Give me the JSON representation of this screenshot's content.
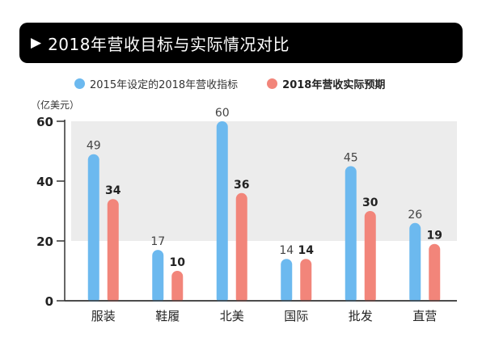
{
  "title": "2018年营收目标与实际情况对比",
  "unit": "（亿美元）",
  "colors": {
    "target": "#6cb9ef",
    "actual": "#f2857a",
    "band": "#ececec"
  },
  "chart_data": {
    "type": "bar",
    "categories": [
      "服装",
      "鞋履",
      "北美",
      "国际",
      "批发",
      "直营"
    ],
    "series": [
      {
        "name": "2015年设定的2018年营收指标",
        "values": [
          49,
          17,
          60,
          14,
          45,
          26
        ]
      },
      {
        "name": "2018年营收实际预期",
        "values": [
          34,
          10,
          36,
          14,
          30,
          19
        ]
      }
    ],
    "yticks": [
      0,
      20,
      40,
      60
    ],
    "ylim": [
      0,
      60
    ],
    "ylabel": "（亿美元）",
    "legend": "top",
    "grid": "alternating bands"
  }
}
